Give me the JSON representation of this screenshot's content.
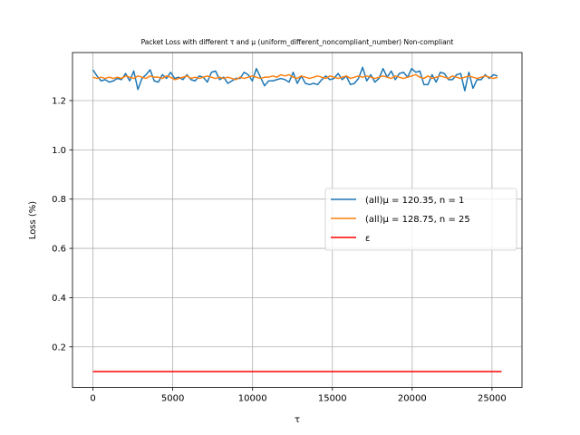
{
  "chart_data": {
    "type": "line",
    "title": "Packet Loss with different τ and μ (uniform_different_noncompliant_number) Non-compliant",
    "xlabel": "τ",
    "ylabel": "Loss (%)",
    "xlim": [
      -1280,
      26880
    ],
    "ylim": [
      0.035,
      1.395
    ],
    "xticks": [
      0,
      5000,
      10000,
      15000,
      20000,
      25000
    ],
    "xtick_labels": [
      "0",
      "5000",
      "10000",
      "15000",
      "20000",
      "25000"
    ],
    "yticks": [
      0.2,
      0.4,
      0.6,
      0.8,
      1.0,
      1.2
    ],
    "ytick_labels": [
      "0.2",
      "0.4",
      "0.6",
      "0.8",
      "1.0",
      "1.2"
    ],
    "grid": true,
    "legend_position": "center-right",
    "series": [
      {
        "name": "(all)μ = 120.35, n =  1",
        "color": "#1f77b4",
        "x_start": 0,
        "x_step": 256,
        "values": [
          1.325,
          1.3,
          1.28,
          1.285,
          1.275,
          1.28,
          1.29,
          1.285,
          1.31,
          1.28,
          1.32,
          1.245,
          1.29,
          1.305,
          1.325,
          1.28,
          1.275,
          1.305,
          1.29,
          1.315,
          1.29,
          1.295,
          1.285,
          1.305,
          1.285,
          1.28,
          1.3,
          1.295,
          1.275,
          1.315,
          1.32,
          1.285,
          1.295,
          1.27,
          1.28,
          1.29,
          1.29,
          1.315,
          1.305,
          1.28,
          1.33,
          1.295,
          1.26,
          1.28,
          1.28,
          1.285,
          1.29,
          1.285,
          1.275,
          1.315,
          1.27,
          1.3,
          1.27,
          1.265,
          1.27,
          1.265,
          1.285,
          1.3,
          1.285,
          1.29,
          1.31,
          1.285,
          1.3,
          1.265,
          1.27,
          1.29,
          1.335,
          1.28,
          1.305,
          1.275,
          1.29,
          1.33,
          1.295,
          1.32,
          1.285,
          1.31,
          1.315,
          1.295,
          1.33,
          1.315,
          1.32,
          1.265,
          1.265,
          1.305,
          1.275,
          1.315,
          1.31,
          1.285,
          1.285,
          1.305,
          1.31,
          1.24,
          1.315,
          1.25,
          1.285,
          1.285,
          1.305,
          1.29,
          1.305,
          1.3
        ]
      },
      {
        "name": "(all)μ = 128.75, n = 25",
        "color": "#ff7f0e",
        "x_start": 0,
        "x_step": 256,
        "values": [
          1.295,
          1.29,
          1.295,
          1.29,
          1.295,
          1.29,
          1.295,
          1.29,
          1.3,
          1.295,
          1.29,
          1.3,
          1.295,
          1.29,
          1.3,
          1.295,
          1.295,
          1.29,
          1.3,
          1.295,
          1.285,
          1.29,
          1.295,
          1.3,
          1.29,
          1.295,
          1.29,
          1.295,
          1.3,
          1.295,
          1.29,
          1.295,
          1.29,
          1.295,
          1.29,
          1.285,
          1.295,
          1.29,
          1.295,
          1.3,
          1.295,
          1.29,
          1.295,
          1.295,
          1.3,
          1.295,
          1.305,
          1.3,
          1.305,
          1.295,
          1.29,
          1.3,
          1.295,
          1.29,
          1.295,
          1.3,
          1.295,
          1.29,
          1.3,
          1.295,
          1.29,
          1.295,
          1.3,
          1.29,
          1.295,
          1.3,
          1.295,
          1.3,
          1.295,
          1.29,
          1.295,
          1.3,
          1.295,
          1.29,
          1.3,
          1.295,
          1.29,
          1.295,
          1.3,
          1.305,
          1.295,
          1.29,
          1.3,
          1.29,
          1.295,
          1.3,
          1.295,
          1.29,
          1.3,
          1.295,
          1.29,
          1.295,
          1.3,
          1.295,
          1.29,
          1.295,
          1.3,
          1.295,
          1.29,
          1.295
        ]
      },
      {
        "name": "ε",
        "color": "#ff0000",
        "x": [
          0,
          25600
        ],
        "values": [
          0.1,
          0.1
        ]
      }
    ]
  }
}
